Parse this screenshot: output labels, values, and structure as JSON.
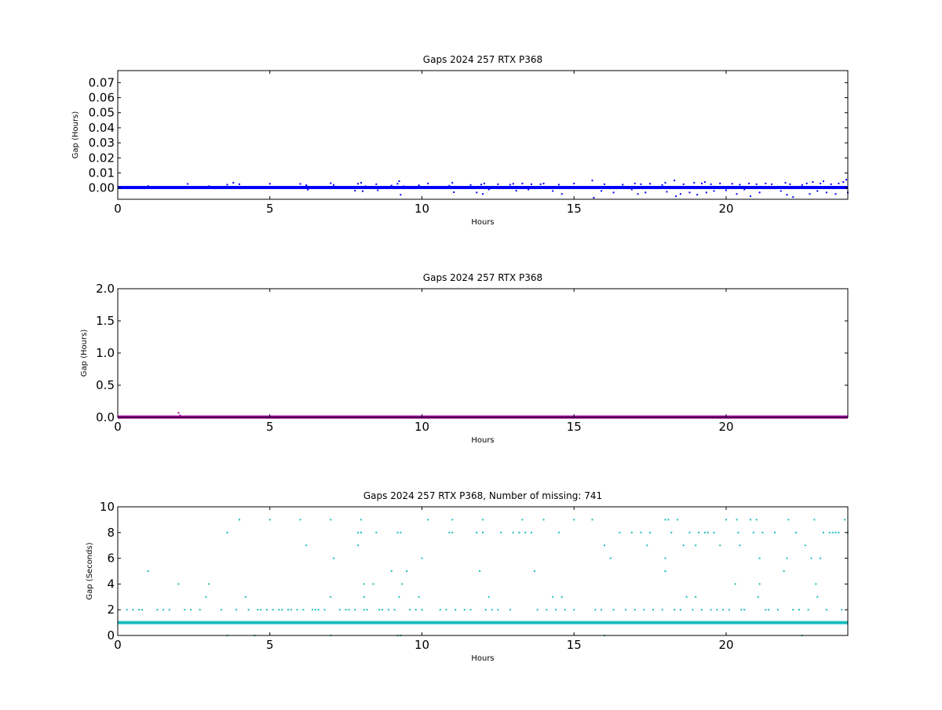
{
  "colors": {
    "panel1": "#0000ff",
    "panel2": "#a000a0",
    "panel3": "#1abcbc",
    "axis": "#000000",
    "background": "#ffffff"
  },
  "chart_data": [
    {
      "type": "scatter",
      "title": "Gaps 2024 257 RTX  P368",
      "xlabel": "Hours",
      "ylabel": "Gap (Hours)",
      "xlim": [
        0,
        24
      ],
      "ylim": [
        -0.0075,
        0.078
      ],
      "xticks": [
        "0",
        "5",
        "10",
        "15",
        "20"
      ],
      "yticks": [
        "0.00",
        "0.01",
        "0.02",
        "0.03",
        "0.04",
        "0.05",
        "0.06",
        "0.07"
      ],
      "grid": false,
      "baseline": {
        "x_start": 0,
        "x_end": 24,
        "y": 0.0003
      },
      "points": [
        [
          1.0,
          0.0013
        ],
        [
          2.3,
          0.0027
        ],
        [
          3.0,
          0.0012
        ],
        [
          3.6,
          0.0022
        ],
        [
          3.8,
          0.0035
        ],
        [
          4.0,
          0.0025
        ],
        [
          5.0,
          0.0028
        ],
        [
          6.0,
          0.0027
        ],
        [
          6.2,
          0.0019
        ],
        [
          6.25,
          -0.0011
        ],
        [
          7.0,
          0.0032
        ],
        [
          7.1,
          0.002
        ],
        [
          7.8,
          -0.0018
        ],
        [
          7.9,
          0.0028
        ],
        [
          8.0,
          0.0035
        ],
        [
          8.05,
          -0.0021
        ],
        [
          8.15,
          0.0011
        ],
        [
          8.5,
          0.0025
        ],
        [
          8.55,
          -0.0015
        ],
        [
          9.0,
          0.0016
        ],
        [
          9.2,
          0.0028
        ],
        [
          9.25,
          0.0045
        ],
        [
          9.3,
          -0.0045
        ],
        [
          9.4,
          0.0011
        ],
        [
          9.9,
          0.0018
        ],
        [
          10.2,
          0.003
        ],
        [
          10.9,
          0.0015
        ],
        [
          11.0,
          0.0035
        ],
        [
          11.05,
          -0.0028
        ],
        [
          11.6,
          0.002
        ],
        [
          11.8,
          -0.003
        ],
        [
          11.95,
          0.0023
        ],
        [
          12.0,
          -0.004
        ],
        [
          12.05,
          0.003
        ],
        [
          12.2,
          -0.001
        ],
        [
          12.5,
          0.0025
        ],
        [
          12.9,
          0.0022
        ],
        [
          13.0,
          0.0028
        ],
        [
          13.1,
          -0.0018
        ],
        [
          13.3,
          0.003
        ],
        [
          13.5,
          -0.001
        ],
        [
          13.6,
          0.0025
        ],
        [
          13.9,
          0.0025
        ],
        [
          14.0,
          0.003
        ],
        [
          14.3,
          -0.002
        ],
        [
          14.5,
          0.0022
        ],
        [
          14.6,
          -0.004
        ],
        [
          15.0,
          0.003
        ],
        [
          15.6,
          0.005
        ],
        [
          15.65,
          -0.0065
        ],
        [
          15.9,
          -0.002
        ],
        [
          16.0,
          0.0025
        ],
        [
          16.3,
          -0.003
        ],
        [
          16.6,
          0.0022
        ],
        [
          16.9,
          -0.001
        ],
        [
          17.0,
          0.003
        ],
        [
          17.1,
          -0.004
        ],
        [
          17.2,
          0.0025
        ],
        [
          17.35,
          -0.003
        ],
        [
          17.5,
          0.0028
        ],
        [
          17.9,
          0.002
        ],
        [
          18.0,
          0.0035
        ],
        [
          18.05,
          -0.0025
        ],
        [
          18.3,
          0.005
        ],
        [
          18.35,
          -0.0055
        ],
        [
          18.5,
          -0.004
        ],
        [
          18.6,
          0.0025
        ],
        [
          18.8,
          -0.003
        ],
        [
          18.95,
          0.0035
        ],
        [
          19.05,
          -0.0045
        ],
        [
          19.2,
          0.003
        ],
        [
          19.3,
          0.004
        ],
        [
          19.35,
          -0.003
        ],
        [
          19.5,
          0.0025
        ],
        [
          19.6,
          -0.002
        ],
        [
          19.8,
          0.003
        ],
        [
          20.0,
          -0.0015
        ],
        [
          20.2,
          0.0028
        ],
        [
          20.35,
          -0.004
        ],
        [
          20.45,
          0.0022
        ],
        [
          20.6,
          -0.001
        ],
        [
          20.75,
          0.003
        ],
        [
          20.8,
          -0.0055
        ],
        [
          21.0,
          0.0025
        ],
        [
          21.1,
          -0.003
        ],
        [
          21.3,
          0.003
        ],
        [
          21.5,
          0.0025
        ],
        [
          21.8,
          -0.002
        ],
        [
          21.95,
          0.0035
        ],
        [
          22.0,
          -0.0045
        ],
        [
          22.1,
          0.0025
        ],
        [
          22.2,
          -0.006
        ],
        [
          22.5,
          0.002
        ],
        [
          22.65,
          0.003
        ],
        [
          22.75,
          -0.004
        ],
        [
          22.85,
          0.004
        ],
        [
          23.0,
          -0.002
        ],
        [
          23.1,
          0.003
        ],
        [
          23.2,
          0.0045
        ],
        [
          23.3,
          -0.003
        ],
        [
          23.45,
          0.0025
        ],
        [
          23.6,
          -0.004
        ],
        [
          23.7,
          0.003
        ],
        [
          23.85,
          0.004
        ],
        [
          23.95,
          0.0055
        ],
        [
          24.0,
          -0.003
        ]
      ]
    },
    {
      "type": "scatter",
      "title": "Gaps 2024 257 RTX  P368",
      "xlabel": "Hours",
      "ylabel": "Gap (Hours)",
      "xlim": [
        0,
        24
      ],
      "ylim": [
        0,
        2.0
      ],
      "xticks": [
        "0",
        "5",
        "10",
        "15",
        "20"
      ],
      "yticks": [
        "0.0",
        "0.5",
        "1.0",
        "1.5",
        "2.0"
      ],
      "grid": false,
      "baseline": {
        "x_start": 0,
        "x_end": 24,
        "y": 0.005
      },
      "points": [
        [
          2.0,
          0.07
        ],
        [
          2.05,
          0.03
        ]
      ]
    },
    {
      "type": "scatter",
      "title": "Gaps 2024 257 RTX  P368, Number of missing: 741",
      "xlabel": "Hours",
      "ylabel": "Gap (Seconds)",
      "xlim": [
        0,
        24
      ],
      "ylim": [
        0,
        10
      ],
      "xticks": [
        "0",
        "5",
        "10",
        "15",
        "20"
      ],
      "yticks": [
        "0",
        "2",
        "4",
        "6",
        "8",
        "10"
      ],
      "grid": false,
      "baseline": {
        "x_start": 0,
        "x_end": 24,
        "y": 1
      },
      "points": [
        [
          0.3,
          2
        ],
        [
          0.5,
          2
        ],
        [
          0.7,
          2
        ],
        [
          0.8,
          2
        ],
        [
          1.0,
          5
        ],
        [
          1.3,
          2
        ],
        [
          1.5,
          2
        ],
        [
          1.7,
          2
        ],
        [
          2.0,
          4
        ],
        [
          2.2,
          2
        ],
        [
          2.4,
          2
        ],
        [
          2.7,
          2
        ],
        [
          2.9,
          3
        ],
        [
          3.0,
          4
        ],
        [
          3.4,
          2
        ],
        [
          3.6,
          8
        ],
        [
          3.6,
          0
        ],
        [
          3.9,
          2
        ],
        [
          4.0,
          9
        ],
        [
          4.2,
          3
        ],
        [
          4.3,
          2
        ],
        [
          4.5,
          0
        ],
        [
          4.6,
          2
        ],
        [
          4.7,
          2
        ],
        [
          4.9,
          2
        ],
        [
          5.0,
          9
        ],
        [
          5.1,
          2
        ],
        [
          5.3,
          2
        ],
        [
          5.4,
          2
        ],
        [
          5.6,
          2
        ],
        [
          5.7,
          2
        ],
        [
          5.9,
          2
        ],
        [
          6.0,
          9
        ],
        [
          6.1,
          2
        ],
        [
          6.2,
          7
        ],
        [
          6.4,
          2
        ],
        [
          6.5,
          2
        ],
        [
          6.6,
          2
        ],
        [
          6.8,
          2
        ],
        [
          7.0,
          9
        ],
        [
          7.0,
          3
        ],
        [
          7.0,
          0
        ],
        [
          7.1,
          6
        ],
        [
          7.3,
          2
        ],
        [
          7.5,
          2
        ],
        [
          7.6,
          2
        ],
        [
          7.8,
          2
        ],
        [
          7.9,
          7
        ],
        [
          7.9,
          8
        ],
        [
          8.0,
          9
        ],
        [
          8.0,
          8
        ],
        [
          8.1,
          4
        ],
        [
          8.1,
          3
        ],
        [
          8.1,
          2
        ],
        [
          8.2,
          2
        ],
        [
          8.4,
          4
        ],
        [
          8.5,
          8
        ],
        [
          8.6,
          2
        ],
        [
          8.7,
          2
        ],
        [
          8.9,
          2
        ],
        [
          9.0,
          5
        ],
        [
          9.1,
          2
        ],
        [
          9.2,
          8
        ],
        [
          9.25,
          3
        ],
        [
          9.3,
          8
        ],
        [
          9.35,
          4
        ],
        [
          9.2,
          0
        ],
        [
          9.3,
          0
        ],
        [
          9.5,
          5
        ],
        [
          9.6,
          2
        ],
        [
          9.8,
          2
        ],
        [
          9.9,
          3
        ],
        [
          10.0,
          6
        ],
        [
          10.0,
          2
        ],
        [
          10.2,
          9
        ],
        [
          10.6,
          2
        ],
        [
          10.8,
          2
        ],
        [
          10.9,
          8
        ],
        [
          11.0,
          9
        ],
        [
          11.0,
          8
        ],
        [
          11.1,
          2
        ],
        [
          11.4,
          2
        ],
        [
          11.6,
          2
        ],
        [
          11.8,
          8
        ],
        [
          11.9,
          5
        ],
        [
          12.0,
          9
        ],
        [
          12.0,
          8
        ],
        [
          12.1,
          2
        ],
        [
          12.2,
          3
        ],
        [
          12.3,
          2
        ],
        [
          12.5,
          2
        ],
        [
          12.6,
          8
        ],
        [
          12.9,
          2
        ],
        [
          13.0,
          8
        ],
        [
          13.2,
          8
        ],
        [
          13.3,
          9
        ],
        [
          13.4,
          8
        ],
        [
          13.6,
          8
        ],
        [
          13.7,
          5
        ],
        [
          13.8,
          2
        ],
        [
          14.0,
          9
        ],
        [
          14.1,
          2
        ],
        [
          14.3,
          3
        ],
        [
          14.4,
          2
        ],
        [
          14.5,
          8
        ],
        [
          14.6,
          3
        ],
        [
          14.7,
          2
        ],
        [
          15.0,
          9
        ],
        [
          15.0,
          2
        ],
        [
          15.6,
          9
        ],
        [
          15.7,
          2
        ],
        [
          15.9,
          2
        ],
        [
          16.0,
          7
        ],
        [
          16.0,
          0
        ],
        [
          16.2,
          6
        ],
        [
          16.3,
          2
        ],
        [
          16.5,
          8
        ],
        [
          16.7,
          2
        ],
        [
          16.9,
          8
        ],
        [
          17.0,
          2
        ],
        [
          17.2,
          8
        ],
        [
          17.3,
          2
        ],
        [
          17.4,
          7
        ],
        [
          17.5,
          8
        ],
        [
          17.6,
          2
        ],
        [
          17.9,
          2
        ],
        [
          18.0,
          9
        ],
        [
          18.0,
          6
        ],
        [
          18.0,
          5
        ],
        [
          18.1,
          9
        ],
        [
          18.2,
          8
        ],
        [
          18.3,
          2
        ],
        [
          18.4,
          9
        ],
        [
          18.5,
          2
        ],
        [
          18.6,
          7
        ],
        [
          18.7,
          3
        ],
        [
          18.8,
          8
        ],
        [
          18.9,
          2
        ],
        [
          19.0,
          7
        ],
        [
          19.0,
          3
        ],
        [
          19.1,
          8
        ],
        [
          19.2,
          2
        ],
        [
          19.3,
          8
        ],
        [
          19.4,
          8
        ],
        [
          19.5,
          2
        ],
        [
          19.6,
          8
        ],
        [
          19.7,
          2
        ],
        [
          19.8,
          7
        ],
        [
          19.9,
          2
        ],
        [
          20.0,
          9
        ],
        [
          20.1,
          2
        ],
        [
          20.3,
          4
        ],
        [
          20.35,
          9
        ],
        [
          20.4,
          8
        ],
        [
          20.45,
          7
        ],
        [
          20.5,
          2
        ],
        [
          20.6,
          2
        ],
        [
          20.8,
          9
        ],
        [
          20.9,
          8
        ],
        [
          21.0,
          9
        ],
        [
          21.05,
          3
        ],
        [
          21.1,
          6
        ],
        [
          21.1,
          4
        ],
        [
          21.2,
          8
        ],
        [
          21.3,
          2
        ],
        [
          21.4,
          2
        ],
        [
          21.6,
          8
        ],
        [
          21.7,
          2
        ],
        [
          21.9,
          5
        ],
        [
          22.0,
          6
        ],
        [
          22.05,
          9
        ],
        [
          22.2,
          2
        ],
        [
          22.3,
          8
        ],
        [
          22.4,
          2
        ],
        [
          22.6,
          7
        ],
        [
          22.7,
          2
        ],
        [
          22.8,
          6
        ],
        [
          22.9,
          9
        ],
        [
          22.95,
          4
        ],
        [
          23.0,
          3
        ],
        [
          23.1,
          6
        ],
        [
          23.2,
          8
        ],
        [
          23.3,
          2
        ],
        [
          23.4,
          8
        ],
        [
          23.5,
          8
        ],
        [
          23.6,
          8
        ],
        [
          23.7,
          8
        ],
        [
          23.8,
          2
        ],
        [
          23.9,
          9
        ],
        [
          24.0,
          8
        ],
        [
          22.5,
          0
        ]
      ]
    }
  ]
}
